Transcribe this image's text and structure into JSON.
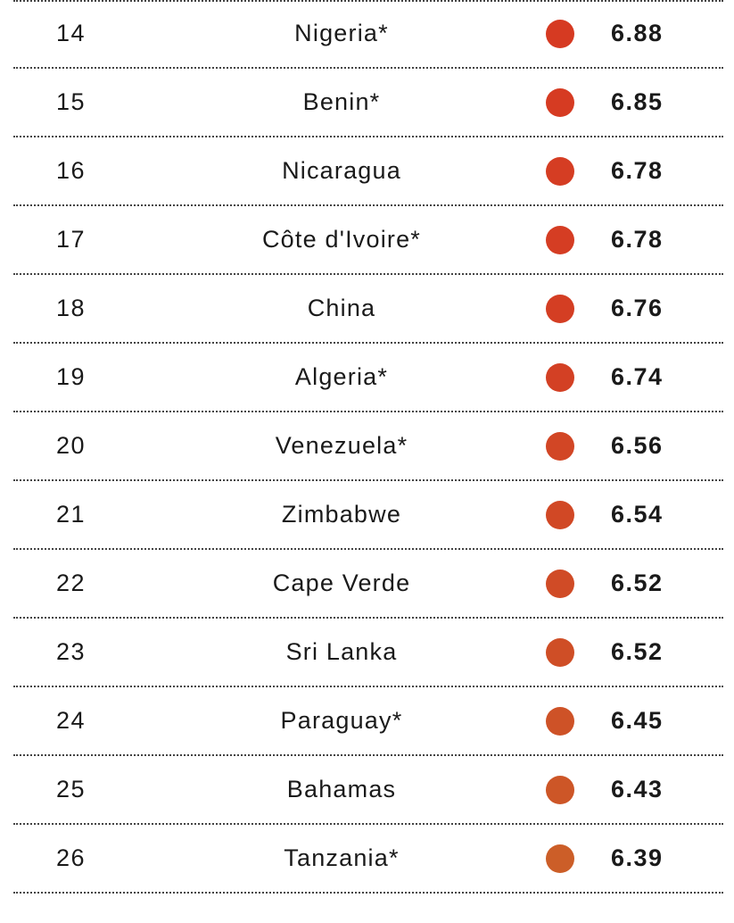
{
  "rows": [
    {
      "rank": "14",
      "country": "Nigeria*",
      "score": "6.88",
      "color": "#d63a22"
    },
    {
      "rank": "15",
      "country": "Benin*",
      "score": "6.85",
      "color": "#d63b22"
    },
    {
      "rank": "16",
      "country": "Nicaragua",
      "score": "6.78",
      "color": "#d53d23"
    },
    {
      "rank": "17",
      "country": "Côte d'Ivoire*",
      "score": "6.78",
      "color": "#d53d23"
    },
    {
      "rank": "18",
      "country": "China",
      "score": "6.76",
      "color": "#d43e23"
    },
    {
      "rank": "19",
      "country": "Algeria*",
      "score": "6.74",
      "color": "#d34024"
    },
    {
      "rank": "20",
      "country": "Venezuela*",
      "score": "6.56",
      "color": "#d24625"
    },
    {
      "rank": "21",
      "country": "Zimbabwe",
      "score": "6.54",
      "color": "#d14825"
    },
    {
      "rank": "22",
      "country": "Cape Verde",
      "score": "6.52",
      "color": "#d04b26"
    },
    {
      "rank": "23",
      "country": "Sri Lanka",
      "score": "6.52",
      "color": "#cf4e26"
    },
    {
      "rank": "24",
      "country": "Paraguay*",
      "score": "6.45",
      "color": "#ce5227"
    },
    {
      "rank": "25",
      "country": "Bahamas",
      "score": "6.43",
      "color": "#cd5627"
    },
    {
      "rank": "26",
      "country": "Tanzania*",
      "score": "6.39",
      "color": "#cc5e28"
    }
  ]
}
